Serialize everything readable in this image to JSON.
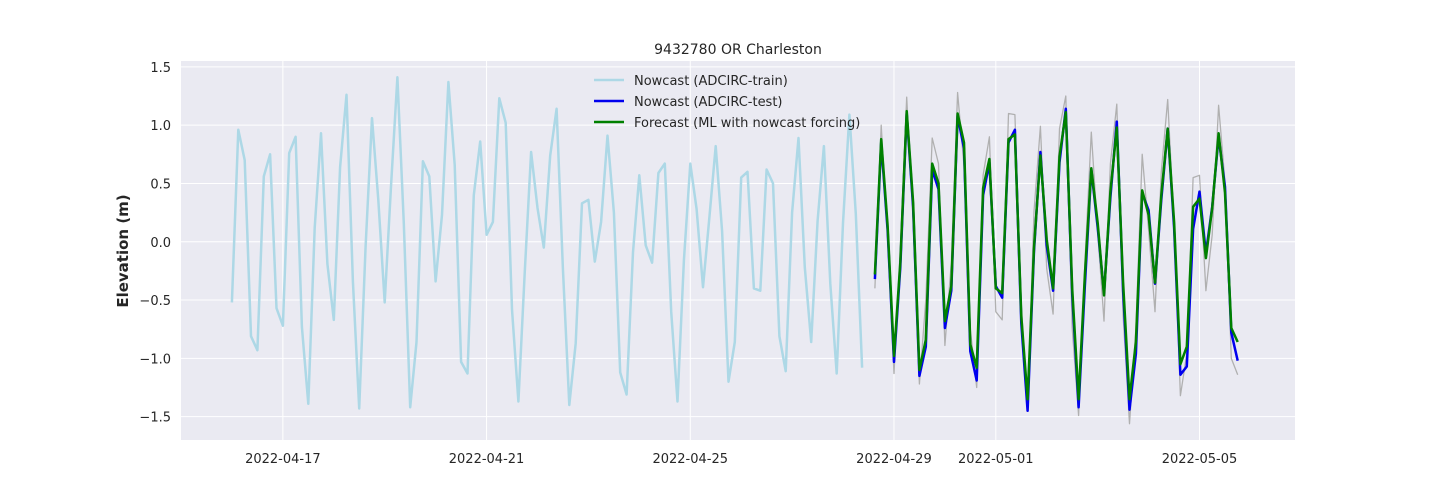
{
  "chart_data": {
    "type": "line",
    "title": "9432780 OR Charleston",
    "xlabel": "",
    "ylabel": "Elevation (m)",
    "x_axis": {
      "type": "date",
      "range": [
        "2022-04-15T00:00",
        "2022-05-06T21:00"
      ],
      "ticks": [
        "2022-04-17",
        "2022-04-21",
        "2022-04-25",
        "2022-04-29",
        "2022-05-01",
        "2022-05-05"
      ]
    },
    "y_axis": {
      "range": [
        -1.7,
        1.55
      ],
      "ticks": [
        1.5,
        1.0,
        0.5,
        0.0,
        -0.5,
        -1.0,
        -1.5
      ],
      "tick_labels": [
        "1.5",
        "1.0",
        "0.5",
        "0.0",
        "−0.5",
        "−1.0",
        "−1.5"
      ]
    },
    "grid": true,
    "legend_position": "upper-center",
    "colors": {
      "background": "#eaeaf2",
      "grid": "#ffffff",
      "train": "#add8e6",
      "test": "#0000ee",
      "forecast": "#008000",
      "observed": "#b0b0b0"
    },
    "series": [
      {
        "name": "Nowcast (ADCIRC-train)",
        "color": "#add8e6",
        "x_start": "2022-04-16T00:00",
        "step_hours": 3,
        "values": [
          -0.52,
          0.96,
          0.7,
          -0.81,
          -0.93,
          0.56,
          0.75,
          -0.57,
          -0.72,
          0.76,
          0.9,
          -0.73,
          -1.39,
          0.12,
          0.93,
          -0.19,
          -0.67,
          0.64,
          1.26,
          -0.34,
          -1.43,
          -0.04,
          1.06,
          0.36,
          -0.52,
          0.49,
          1.41,
          0.16,
          -1.42,
          -0.86,
          0.69,
          0.56,
          -0.34,
          0.23,
          1.37,
          0.66,
          -1.03,
          -1.13,
          0.4,
          0.86,
          0.06,
          0.17,
          1.23,
          1.02,
          -0.58,
          -1.37,
          -0.27,
          0.77,
          0.29,
          -0.05,
          0.74,
          1.14,
          -0.23,
          -1.4,
          -0.87,
          0.33,
          0.36,
          -0.17,
          0.17,
          0.91,
          0.25,
          -1.12,
          -1.31,
          -0.09,
          0.57,
          -0.03,
          -0.18,
          0.59,
          0.67,
          -0.6,
          -1.37,
          -0.16,
          0.67,
          0.28,
          -0.39,
          0.21,
          0.82,
          0.09,
          -1.2,
          -0.86,
          0.55,
          0.6,
          -0.4,
          -0.42,
          0.62,
          0.5,
          -0.81,
          -1.11,
          0.25,
          0.89,
          -0.22,
          -0.86,
          0.18,
          0.82,
          -0.36,
          -1.13,
          0.16,
          1.09,
          0.24,
          -1.08
        ]
      },
      {
        "name": "Nowcast (ADCIRC-test)",
        "color": "#0000ee",
        "x_start": "2022-04-28T15:00",
        "step_hours": 3,
        "values": [
          -0.32,
          0.85,
          0.1,
          -1.03,
          -0.22,
          1.1,
          0.3,
          -1.15,
          -0.9,
          0.62,
          0.45,
          -0.74,
          -0.42,
          1.08,
          0.8,
          -0.94,
          -1.19,
          0.4,
          0.68,
          -0.38,
          -0.48,
          0.85,
          0.96,
          -0.7,
          -1.45,
          -0.08,
          0.77,
          -0.03,
          -0.42,
          0.68,
          1.14,
          -0.45,
          -1.42,
          -0.37,
          0.62,
          0.12,
          -0.44,
          0.38,
          1.03,
          -0.42,
          -1.44,
          -0.96,
          0.42,
          0.27,
          -0.36,
          0.36,
          0.97,
          0.12,
          -1.14,
          -1.07,
          0.11,
          0.43,
          -0.1,
          0.3,
          0.9,
          0.47,
          -0.78,
          -1.02
        ]
      },
      {
        "name": "Forecast (ML with nowcast forcing)",
        "color": "#008000",
        "x_start": "2022-04-28T15:00",
        "step_hours": 3,
        "values": [
          -0.28,
          0.88,
          0.14,
          -0.98,
          -0.18,
          1.12,
          0.34,
          -1.1,
          -0.84,
          0.67,
          0.5,
          -0.68,
          -0.38,
          1.1,
          0.85,
          -0.88,
          -1.08,
          0.46,
          0.71,
          -0.4,
          -0.44,
          0.88,
          0.92,
          -0.64,
          -1.35,
          -0.05,
          0.74,
          0.02,
          -0.4,
          0.73,
          1.11,
          -0.4,
          -1.35,
          -0.28,
          0.63,
          0.16,
          -0.46,
          0.43,
          0.98,
          -0.35,
          -1.35,
          -0.86,
          0.44,
          0.23,
          -0.35,
          0.4,
          0.97,
          0.17,
          -1.05,
          -0.9,
          0.3,
          0.37,
          -0.14,
          0.29,
          0.93,
          0.42,
          -0.74,
          -0.86
        ]
      },
      {
        "color": "#b0b0b0",
        "x_start": "2022-04-28T15:00",
        "step_hours": 3,
        "values": [
          -0.4,
          1.0,
          0.05,
          -1.13,
          -0.05,
          1.24,
          0.18,
          -1.22,
          -0.5,
          0.89,
          0.67,
          -0.89,
          -0.18,
          1.28,
          0.65,
          -0.75,
          -1.25,
          0.57,
          0.9,
          -0.6,
          -0.67,
          1.1,
          1.09,
          -0.53,
          -1.45,
          0.26,
          0.99,
          -0.23,
          -0.62,
          0.97,
          1.25,
          -0.74,
          -1.49,
          -0.18,
          0.94,
          0.08,
          -0.68,
          0.67,
          1.18,
          -0.63,
          -1.56,
          -0.74,
          0.75,
          0.1,
          -0.6,
          0.6,
          1.22,
          0.14,
          -1.32,
          -0.96,
          0.55,
          0.57,
          -0.42,
          0.06,
          1.17,
          0.51,
          -1.0,
          -1.14
        ]
      }
    ]
  }
}
